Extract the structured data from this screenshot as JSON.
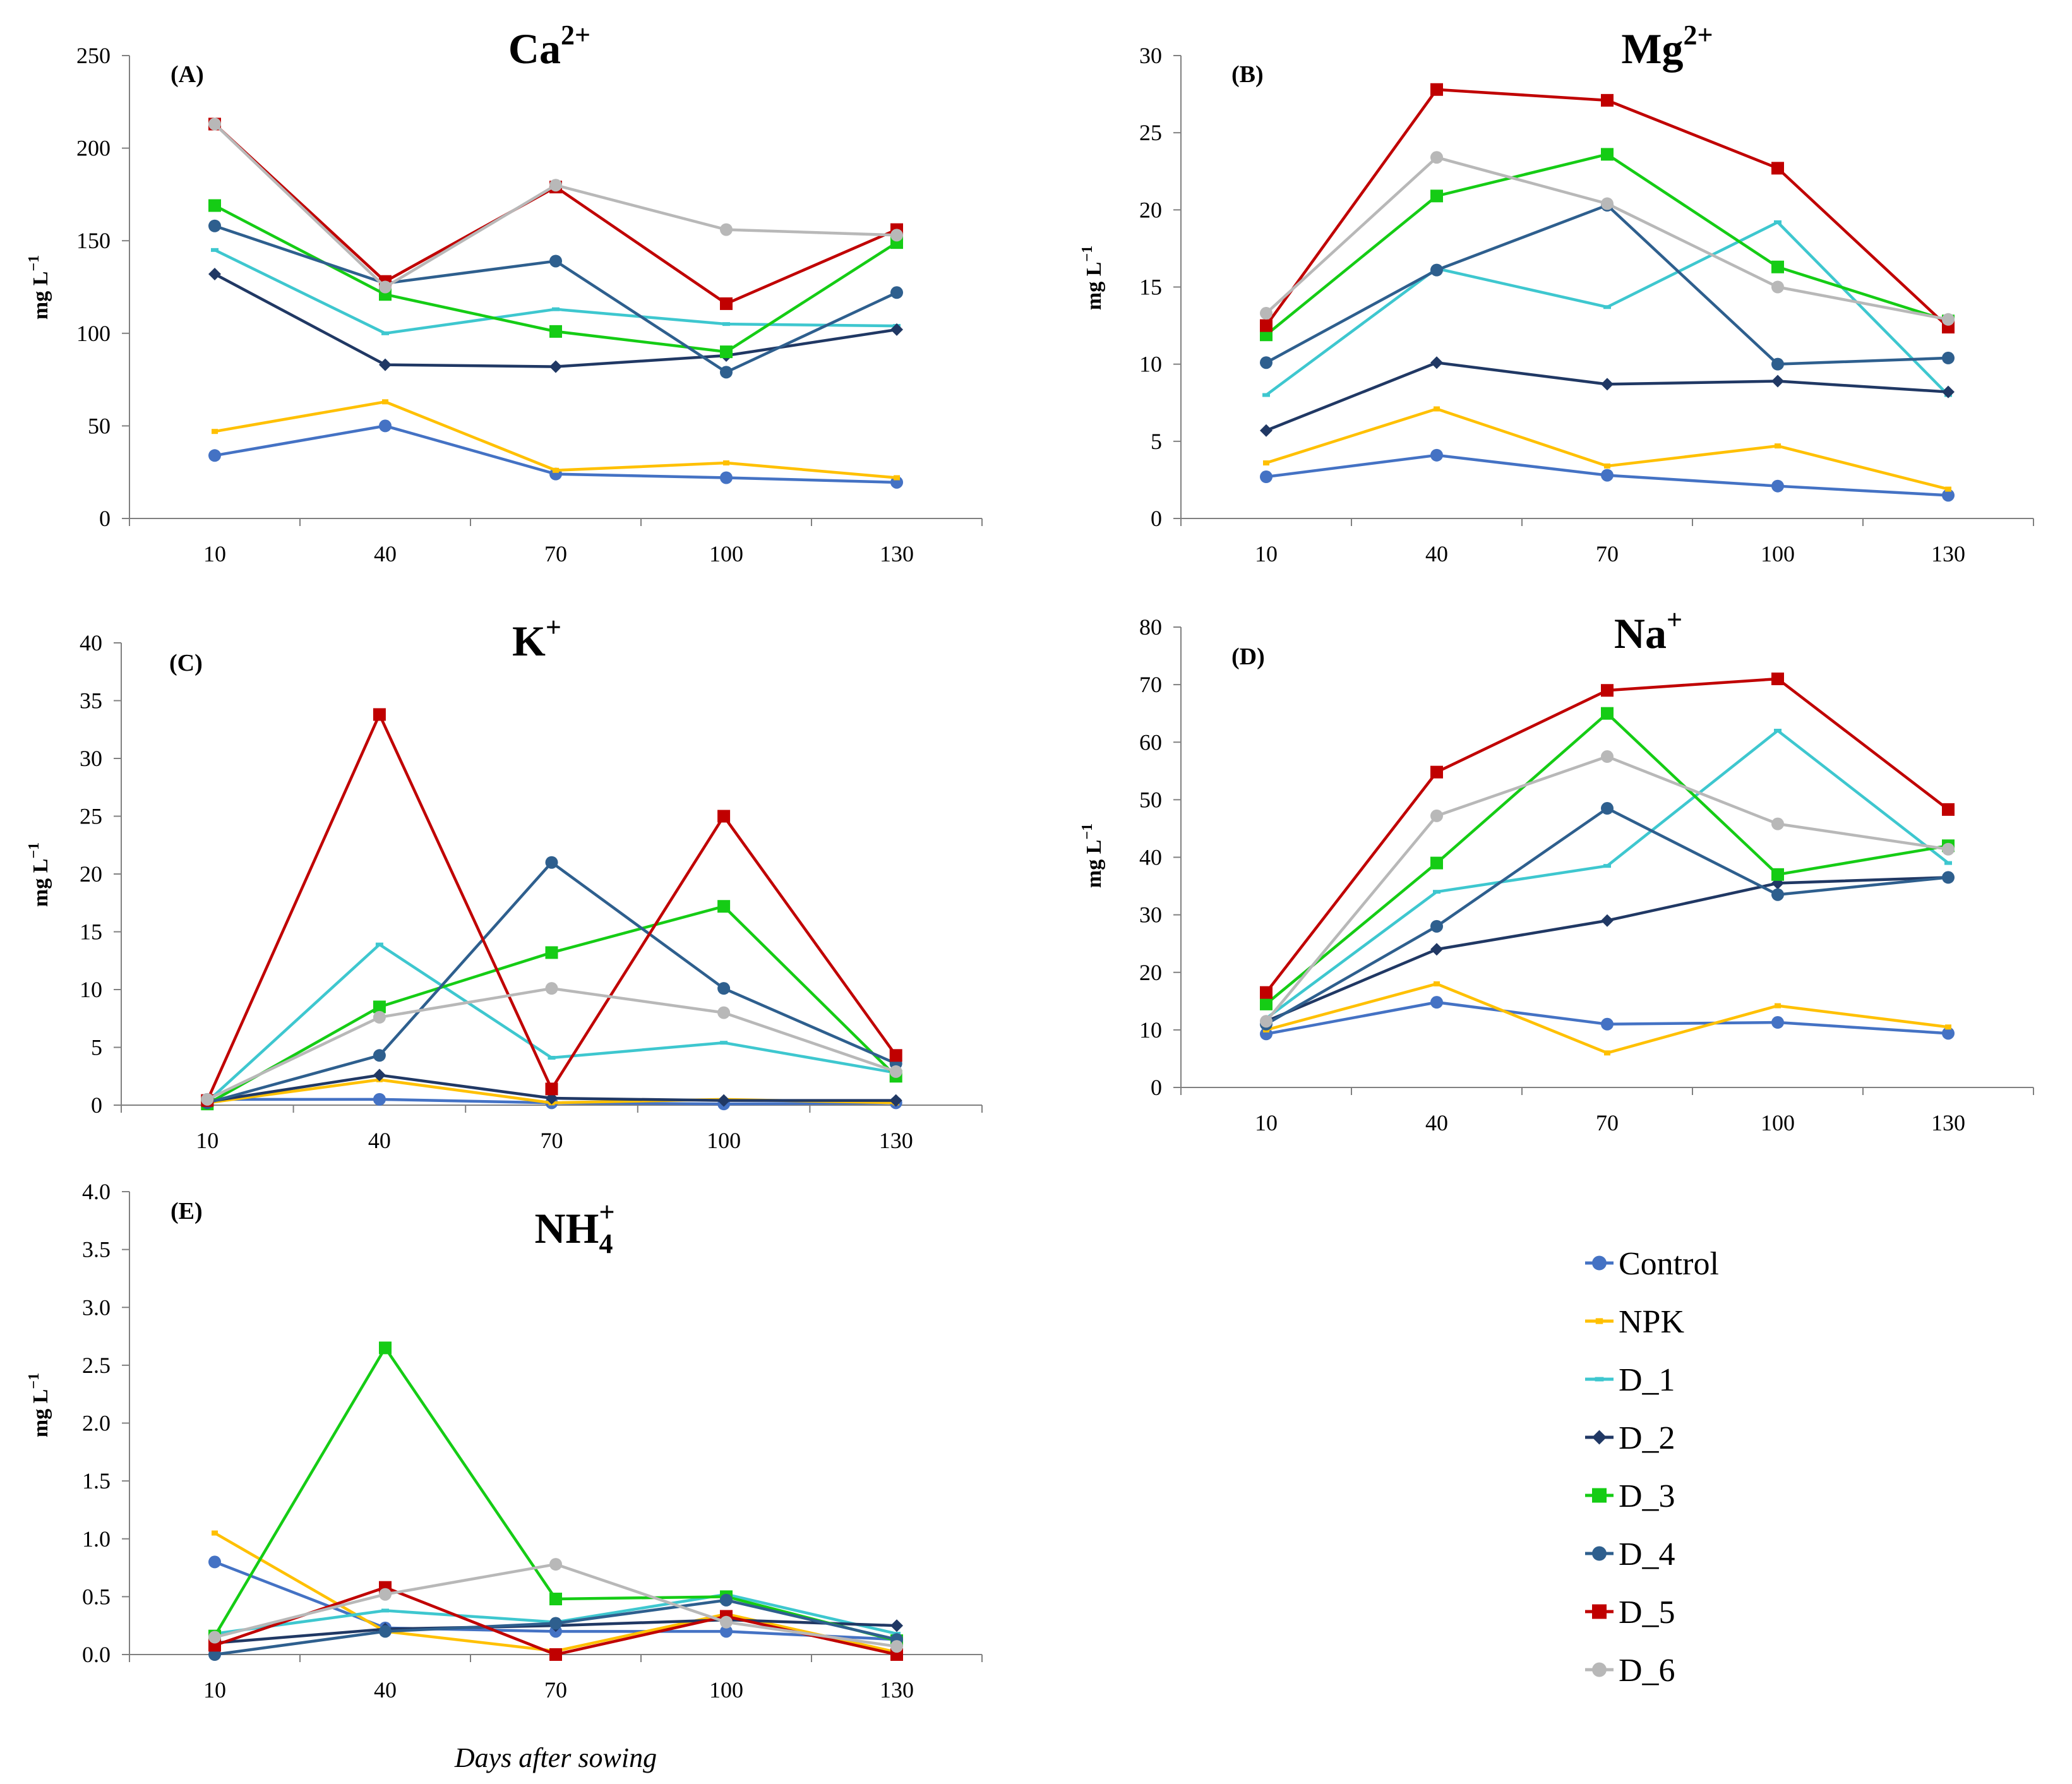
{
  "x_axis_label": "Days after sowing",
  "legend": {
    "entries": [
      "Control",
      "NPK",
      "D_1",
      "D_2",
      "D_3",
      "D_4",
      "D_5",
      "D_6"
    ],
    "location": "bottom-right"
  },
  "series_style": {
    "Control": {
      "color": "#4472C4",
      "marker": "circle"
    },
    "NPK": {
      "color": "#FFC000",
      "marker": "small-square"
    },
    "D_1": {
      "color": "#3EC7CF",
      "marker": "small-dash"
    },
    "D_2": {
      "color": "#203864",
      "marker": "diamond"
    },
    "D_3": {
      "color": "#15CC15",
      "marker": "square"
    },
    "D_4": {
      "color": "#2E5F8E",
      "marker": "circle"
    },
    "D_5": {
      "color": "#C00000",
      "marker": "square"
    },
    "D_6": {
      "color": "#B8B8B8",
      "marker": "circle"
    }
  },
  "chart_data": [
    {
      "type": "line",
      "panel": "(A)",
      "title": "Ca",
      "title_sup": "2+",
      "title_sub": "",
      "ylabel": "mg L",
      "ylabel_sup": "−1",
      "xlabel": "",
      "x": [
        10,
        40,
        70,
        100,
        130
      ],
      "ylim": [
        0,
        250
      ],
      "yticks": [
        "0",
        "50",
        "100",
        "150",
        "200",
        "250"
      ],
      "series": [
        {
          "name": "Control",
          "values": [
            34,
            50,
            24,
            22,
            19.5
          ]
        },
        {
          "name": "NPK",
          "values": [
            47,
            63,
            26,
            30,
            22
          ]
        },
        {
          "name": "D_1",
          "values": [
            145,
            100,
            113,
            105,
            104
          ]
        },
        {
          "name": "D_2",
          "values": [
            132,
            83,
            82,
            88,
            102
          ]
        },
        {
          "name": "D_3",
          "values": [
            169,
            121,
            101,
            90,
            149
          ]
        },
        {
          "name": "D_4",
          "values": [
            158,
            127,
            139,
            79,
            122
          ]
        },
        {
          "name": "D_5",
          "values": [
            213,
            128,
            179,
            116,
            156
          ]
        },
        {
          "name": "D_6",
          "values": [
            213,
            125,
            180,
            156,
            153
          ]
        }
      ]
    },
    {
      "type": "line",
      "panel": "(B)",
      "title": "Mg",
      "title_sup": "2+",
      "title_sub": "",
      "ylabel": "mg L",
      "ylabel_sup": "−1",
      "xlabel": "",
      "x": [
        10,
        40,
        70,
        100,
        130
      ],
      "ylim": [
        0,
        30
      ],
      "yticks": [
        "0",
        "5",
        "10",
        "15",
        "20",
        "25",
        "30"
      ],
      "series": [
        {
          "name": "Control",
          "values": [
            2.7,
            4.1,
            2.8,
            2.1,
            1.5
          ]
        },
        {
          "name": "NPK",
          "values": [
            3.6,
            7.1,
            3.4,
            4.7,
            1.9
          ]
        },
        {
          "name": "D_1",
          "values": [
            8.0,
            16.2,
            13.7,
            19.2,
            8.0
          ]
        },
        {
          "name": "D_2",
          "values": [
            5.7,
            10.1,
            8.7,
            8.9,
            8.2
          ]
        },
        {
          "name": "D_3",
          "values": [
            11.9,
            20.9,
            23.6,
            16.3,
            12.8
          ]
        },
        {
          "name": "D_4",
          "values": [
            10.1,
            16.1,
            20.3,
            10.0,
            10.4
          ]
        },
        {
          "name": "D_5",
          "values": [
            12.5,
            27.8,
            27.1,
            22.7,
            12.4
          ]
        },
        {
          "name": "D_6",
          "values": [
            13.3,
            23.4,
            20.4,
            15.0,
            12.9
          ]
        }
      ]
    },
    {
      "type": "line",
      "panel": "(C)",
      "title": "K",
      "title_sup": "+",
      "title_sub": "",
      "ylabel": "mg L",
      "ylabel_sup": "−1",
      "xlabel": "",
      "x": [
        10,
        40,
        70,
        100,
        130
      ],
      "ylim": [
        0,
        40
      ],
      "yticks": [
        "0",
        "5",
        "10",
        "15",
        "20",
        "25",
        "30",
        "35",
        "40"
      ],
      "series": [
        {
          "name": "Control",
          "values": [
            0.5,
            0.5,
            0.2,
            0.1,
            0.2
          ]
        },
        {
          "name": "NPK",
          "values": [
            0.2,
            2.2,
            0.2,
            0.5,
            0.2
          ]
        },
        {
          "name": "D_1",
          "values": [
            0.3,
            13.9,
            4.1,
            5.4,
            2.8
          ]
        },
        {
          "name": "D_2",
          "values": [
            0.3,
            2.6,
            0.6,
            0.4,
            0.4
          ]
        },
        {
          "name": "D_3",
          "values": [
            0.1,
            8.5,
            13.2,
            17.2,
            2.5
          ]
        },
        {
          "name": "D_4",
          "values": [
            0.2,
            4.3,
            21.0,
            10.1,
            3.6
          ]
        },
        {
          "name": "D_5",
          "values": [
            0.4,
            33.8,
            1.4,
            25.0,
            4.3
          ]
        },
        {
          "name": "D_6",
          "values": [
            0.5,
            7.6,
            10.1,
            8.0,
            2.9
          ]
        }
      ]
    },
    {
      "type": "line",
      "panel": "(D)",
      "title": "Na",
      "title_sup": "+",
      "title_sub": "",
      "ylabel": "mg L",
      "ylabel_sup": "−1",
      "xlabel": "",
      "x": [
        10,
        40,
        70,
        100,
        130
      ],
      "ylim": [
        0,
        80
      ],
      "yticks": [
        "0",
        "10",
        "20",
        "30",
        "40",
        "50",
        "60",
        "70",
        "80"
      ],
      "series": [
        {
          "name": "Control",
          "values": [
            9.3,
            14.8,
            11.0,
            11.3,
            9.4
          ]
        },
        {
          "name": "NPK",
          "values": [
            10.0,
            18.0,
            6.0,
            14.2,
            10.5
          ]
        },
        {
          "name": "D_1",
          "values": [
            12.0,
            34.0,
            38.5,
            62.0,
            39.0
          ]
        },
        {
          "name": "D_2",
          "values": [
            11.5,
            24.0,
            29.0,
            35.5,
            36.5
          ]
        },
        {
          "name": "D_3",
          "values": [
            14.5,
            39.0,
            65.0,
            37.0,
            42.0
          ]
        },
        {
          "name": "D_4",
          "values": [
            11.0,
            28.0,
            48.5,
            33.5,
            36.5
          ]
        },
        {
          "name": "D_5",
          "values": [
            16.5,
            54.8,
            69.0,
            71.0,
            48.3
          ]
        },
        {
          "name": "D_6",
          "values": [
            11.5,
            47.2,
            57.5,
            45.8,
            41.4
          ]
        }
      ]
    },
    {
      "type": "line",
      "panel": "(E)",
      "title": "NH",
      "title_sup": "+",
      "title_sub": "4",
      "ylabel": "mg L",
      "ylabel_sup": "−1",
      "xlabel": "Days after sowing",
      "x": [
        10,
        40,
        70,
        100,
        130
      ],
      "ylim": [
        0,
        4.0
      ],
      "yticks": [
        "0.0",
        "0.5",
        "1.0",
        "1.5",
        "2.0",
        "2.5",
        "3.0",
        "3.5",
        "4.0"
      ],
      "series": [
        {
          "name": "Control",
          "values": [
            0.8,
            0.23,
            0.2,
            0.2,
            0.13
          ]
        },
        {
          "name": "NPK",
          "values": [
            1.05,
            0.2,
            0.03,
            0.35,
            0.02
          ]
        },
        {
          "name": "D_1",
          "values": [
            0.18,
            0.38,
            0.28,
            0.52,
            0.18
          ]
        },
        {
          "name": "D_2",
          "values": [
            0.1,
            0.22,
            0.25,
            0.3,
            0.25
          ]
        },
        {
          "name": "D_3",
          "values": [
            0.16,
            2.65,
            0.48,
            0.5,
            0.12
          ]
        },
        {
          "name": "D_4",
          "values": [
            0.0,
            0.2,
            0.27,
            0.47,
            0.13
          ]
        },
        {
          "name": "D_5",
          "values": [
            0.08,
            0.58,
            0.0,
            0.33,
            0.0
          ]
        },
        {
          "name": "D_6",
          "values": [
            0.15,
            0.52,
            0.78,
            0.28,
            0.07
          ]
        }
      ]
    }
  ]
}
